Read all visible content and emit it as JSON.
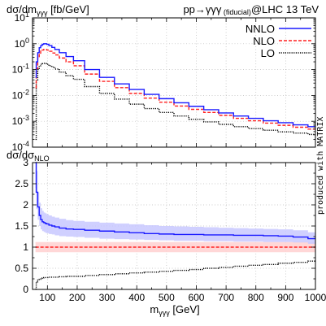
{
  "chart_data": [
    {
      "type": "line",
      "ylabel": "dσ/dm",
      "ylabel_sub": "γγγ",
      "ylabel_unit": "[fb/GeV]",
      "process_label_a": "pp→γγγ",
      "process_label_sub": "(fiducial)",
      "process_label_b": "@LHC 13 TeV",
      "watermark": "produced with MATRIX",
      "yscale": "log",
      "ylim": [
        0.0001,
        10
      ],
      "xlim": [
        50,
        1000
      ],
      "grid": true,
      "legend_position": "top-right",
      "y_tick_labels": [
        {
          "base": "10",
          "exp": "1",
          "value": 10
        },
        {
          "base": "10",
          "exp": "0",
          "value": 1
        },
        {
          "base": "10",
          "exp": "-1",
          "value": 0.1
        },
        {
          "base": "10",
          "exp": "-2",
          "value": 0.01
        },
        {
          "base": "10",
          "exp": "-3",
          "value": 0.001
        },
        {
          "base": "10",
          "exp": "-4",
          "value": 0.0001
        }
      ],
      "x": [
        60,
        65,
        70,
        75,
        80,
        85,
        90,
        95,
        100,
        110,
        120,
        130,
        150,
        175,
        200,
        250,
        300,
        350,
        400,
        450,
        500,
        550,
        600,
        650,
        700,
        750,
        800,
        850,
        900,
        950,
        1000
      ],
      "series": [
        {
          "name": "NNLO",
          "color": "#1a1aff",
          "style": "solid",
          "values": [
            0.05,
            0.2,
            0.45,
            0.7,
            0.85,
            0.95,
            1.0,
            1.0,
            0.95,
            0.85,
            0.72,
            0.6,
            0.45,
            0.32,
            0.22,
            0.1,
            0.05,
            0.028,
            0.017,
            0.011,
            0.0075,
            0.0052,
            0.0038,
            0.0028,
            0.0021,
            0.0016,
            0.0013,
            0.00105,
            0.00088,
            0.00073,
            0.00062
          ]
        },
        {
          "name": "NLO",
          "color": "#ff2020",
          "style": "dashed",
          "values": [
            0.02,
            0.11,
            0.28,
            0.43,
            0.52,
            0.57,
            0.6,
            0.6,
            0.57,
            0.51,
            0.44,
            0.37,
            0.28,
            0.2,
            0.14,
            0.067,
            0.035,
            0.02,
            0.012,
            0.0079,
            0.0055,
            0.0039,
            0.0029,
            0.0022,
            0.0017,
            0.0013,
            0.00105,
            0.00085,
            0.0007,
            0.00059,
            0.0005
          ]
        },
        {
          "name": "LO",
          "color": "#000000",
          "style": "dotted",
          "values": [
            0.0002,
            0.04,
            0.1,
            0.14,
            0.16,
            0.17,
            0.175,
            0.17,
            0.16,
            0.14,
            0.125,
            0.105,
            0.08,
            0.058,
            0.042,
            0.022,
            0.012,
            0.0072,
            0.0046,
            0.0031,
            0.0022,
            0.0016,
            0.0012,
            0.00095,
            0.00076,
            0.00062,
            0.00052,
            0.00045,
            0.00039,
            0.00035,
            0.00031
          ]
        }
      ]
    },
    {
      "type": "line",
      "ylabel": "dσ/dσ",
      "ylabel_sub": "NLO",
      "xlabel": "m",
      "xlabel_sub": "γγγ",
      "xlabel_unit": "[GeV]",
      "ylim": [
        0,
        3
      ],
      "xlim": [
        50,
        1000
      ],
      "grid": true,
      "y_ticks": [
        "0",
        "0.5",
        "1",
        "1.5",
        "2",
        "2.5",
        "3"
      ],
      "x_ticks": [
        "100",
        "200",
        "300",
        "400",
        "500",
        "600",
        "700",
        "800",
        "900",
        "1000"
      ],
      "x": [
        60,
        65,
        70,
        75,
        80,
        85,
        90,
        95,
        100,
        110,
        120,
        130,
        150,
        175,
        200,
        250,
        300,
        350,
        400,
        450,
        500,
        550,
        600,
        650,
        700,
        750,
        800,
        850,
        900,
        950,
        1000
      ],
      "series": [
        {
          "name": "NNLO",
          "color": "#1a1aff",
          "style": "solid",
          "band_color": "#c8c8ff",
          "values": [
            3.0,
            2.3,
            1.95,
            1.75,
            1.65,
            1.6,
            1.58,
            1.56,
            1.55,
            1.52,
            1.5,
            1.48,
            1.45,
            1.43,
            1.42,
            1.4,
            1.38,
            1.36,
            1.34,
            1.32,
            1.31,
            1.3,
            1.3,
            1.29,
            1.29,
            1.28,
            1.28,
            1.27,
            1.26,
            1.24,
            1.2
          ],
          "band_low": [
            2.4,
            1.9,
            1.65,
            1.5,
            1.42,
            1.38,
            1.36,
            1.34,
            1.33,
            1.31,
            1.3,
            1.28,
            1.26,
            1.25,
            1.24,
            1.22,
            1.2,
            1.19,
            1.18,
            1.17,
            1.16,
            1.15,
            1.15,
            1.14,
            1.14,
            1.13,
            1.13,
            1.12,
            1.12,
            1.11,
            1.08
          ],
          "band_high": [
            3.0,
            2.8,
            2.3,
            2.05,
            1.92,
            1.86,
            1.82,
            1.8,
            1.78,
            1.75,
            1.72,
            1.7,
            1.67,
            1.64,
            1.62,
            1.6,
            1.58,
            1.56,
            1.54,
            1.52,
            1.5,
            1.49,
            1.48,
            1.47,
            1.46,
            1.45,
            1.44,
            1.43,
            1.42,
            1.4,
            1.35
          ]
        },
        {
          "name": "NLO",
          "color": "#ff2020",
          "style": "dashed",
          "band_color": "#ffd0d0",
          "values": [
            1.0,
            1.0,
            1.0,
            1.0,
            1.0,
            1.0,
            1.0,
            1.0,
            1.0,
            1.0,
            1.0,
            1.0,
            1.0,
            1.0,
            1.0,
            1.0,
            1.0,
            1.0,
            1.0,
            1.0,
            1.0,
            1.0,
            1.0,
            1.0,
            1.0,
            1.0,
            1.0,
            1.0,
            1.0,
            1.0,
            1.0
          ],
          "band_low": [
            0.88,
            0.88,
            0.88,
            0.88,
            0.88,
            0.88,
            0.88,
            0.88,
            0.88,
            0.88,
            0.88,
            0.88,
            0.88,
            0.88,
            0.88,
            0.88,
            0.88,
            0.88,
            0.88,
            0.88,
            0.88,
            0.88,
            0.88,
            0.88,
            0.88,
            0.88,
            0.88,
            0.88,
            0.88,
            0.88,
            0.88
          ],
          "band_high": [
            1.12,
            1.12,
            1.12,
            1.12,
            1.12,
            1.12,
            1.12,
            1.12,
            1.12,
            1.12,
            1.12,
            1.12,
            1.12,
            1.12,
            1.12,
            1.12,
            1.12,
            1.12,
            1.12,
            1.12,
            1.12,
            1.12,
            1.12,
            1.12,
            1.12,
            1.12,
            1.12,
            1.12,
            1.12,
            1.12,
            1.12
          ]
        },
        {
          "name": "LO",
          "color": "#000000",
          "style": "dotted",
          "values": [
            0.01,
            0.18,
            0.22,
            0.24,
            0.26,
            0.27,
            0.28,
            0.28,
            0.28,
            0.29,
            0.29,
            0.29,
            0.3,
            0.31,
            0.31,
            0.33,
            0.35,
            0.37,
            0.39,
            0.41,
            0.43,
            0.45,
            0.47,
            0.5,
            0.52,
            0.55,
            0.57,
            0.59,
            0.62,
            0.64,
            0.67
          ]
        }
      ]
    }
  ]
}
